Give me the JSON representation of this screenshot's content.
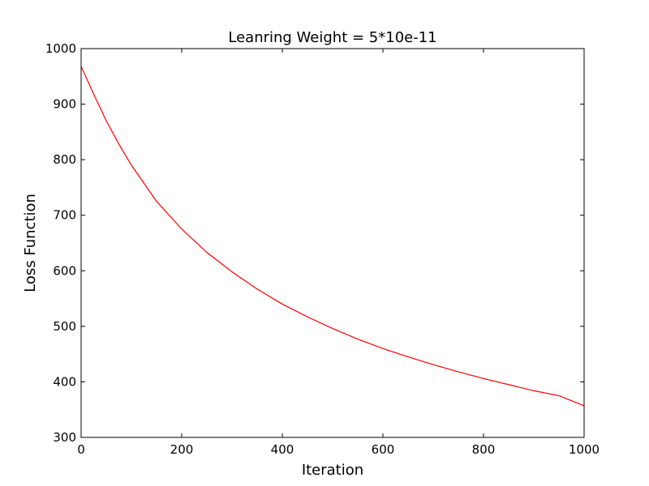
{
  "chart_data": {
    "type": "line",
    "title": "Leanring Weight = 5*10e-11",
    "xlabel": "Iteration",
    "ylabel": "Loss Function",
    "xlim": [
      0,
      1000
    ],
    "ylim": [
      300,
      1000
    ],
    "xticks": [
      0,
      200,
      400,
      600,
      800,
      1000
    ],
    "yticks": [
      300,
      400,
      500,
      600,
      700,
      800,
      900,
      1000
    ],
    "grid": false,
    "series": [
      {
        "color": "#ff0000",
        "x": [
          0,
          25,
          50,
          75,
          100,
          150,
          200,
          250,
          300,
          350,
          400,
          450,
          500,
          550,
          600,
          650,
          700,
          750,
          800,
          850,
          900,
          950,
          1000
        ],
        "y": [
          968,
          918,
          870,
          828,
          790,
          725,
          675,
          633,
          598,
          567,
          540,
          517,
          496,
          477,
          460,
          445,
          431,
          418,
          406,
          395,
          384,
          375,
          357
        ]
      }
    ]
  }
}
